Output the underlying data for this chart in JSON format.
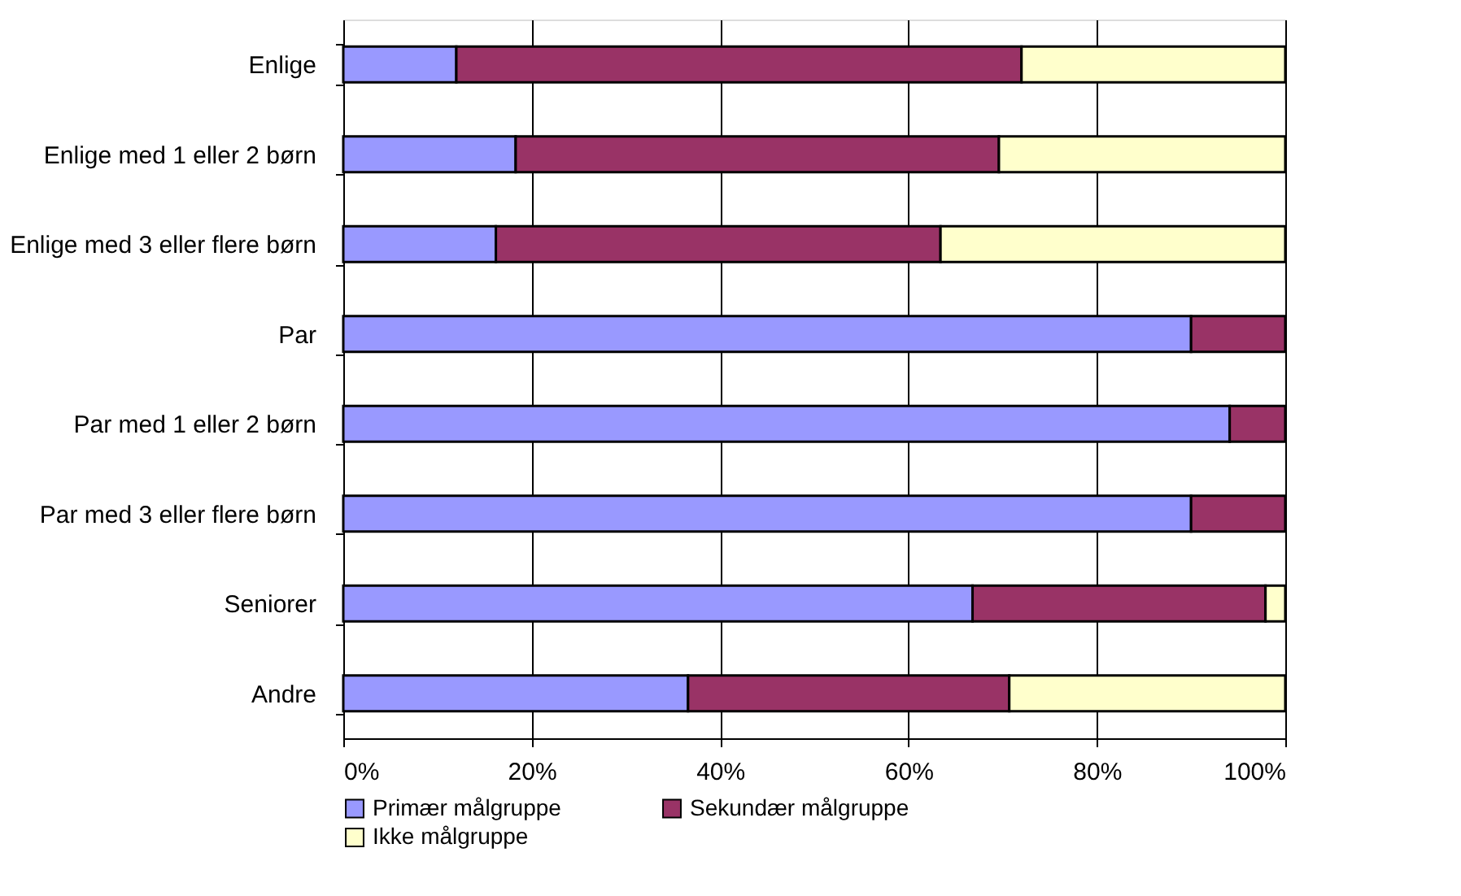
{
  "chart_data": {
    "type": "bar",
    "orientation": "horizontal",
    "stacked": true,
    "categories": [
      "Enlige",
      "Enlige med 1 eller 2 børn",
      "Enlige med 3 eller flere børn",
      "Par",
      "Par med 1 eller 2 børn",
      "Par med 3 eller flere børn",
      "Seniorer",
      "Andre"
    ],
    "series": [
      {
        "name": "Primær målgruppe",
        "color": "#9999ff",
        "values": [
          12.0,
          18.3,
          16.2,
          90.0,
          94.1,
          90.0,
          66.8,
          36.6
        ]
      },
      {
        "name": "Sekundær målgruppe",
        "color": "#993366",
        "values": [
          60.0,
          51.3,
          47.2,
          10.0,
          5.9,
          10.0,
          31.1,
          34.1
        ]
      },
      {
        "name": "Ikke målgruppe",
        "color": "#ffffcc",
        "values": [
          28.0,
          30.4,
          36.6,
          null,
          null,
          null,
          2.1,
          29.3
        ]
      }
    ],
    "xlim": [
      0,
      100
    ],
    "xticks": [
      {
        "value": 0,
        "label": "0%"
      },
      {
        "value": 20,
        "label": "20%"
      },
      {
        "value": 40,
        "label": "40%"
      },
      {
        "value": 60,
        "label": "60%"
      },
      {
        "value": 80,
        "label": "80%"
      },
      {
        "value": 100,
        "label": "100%"
      }
    ],
    "grid": "x",
    "legend": "bottom"
  }
}
